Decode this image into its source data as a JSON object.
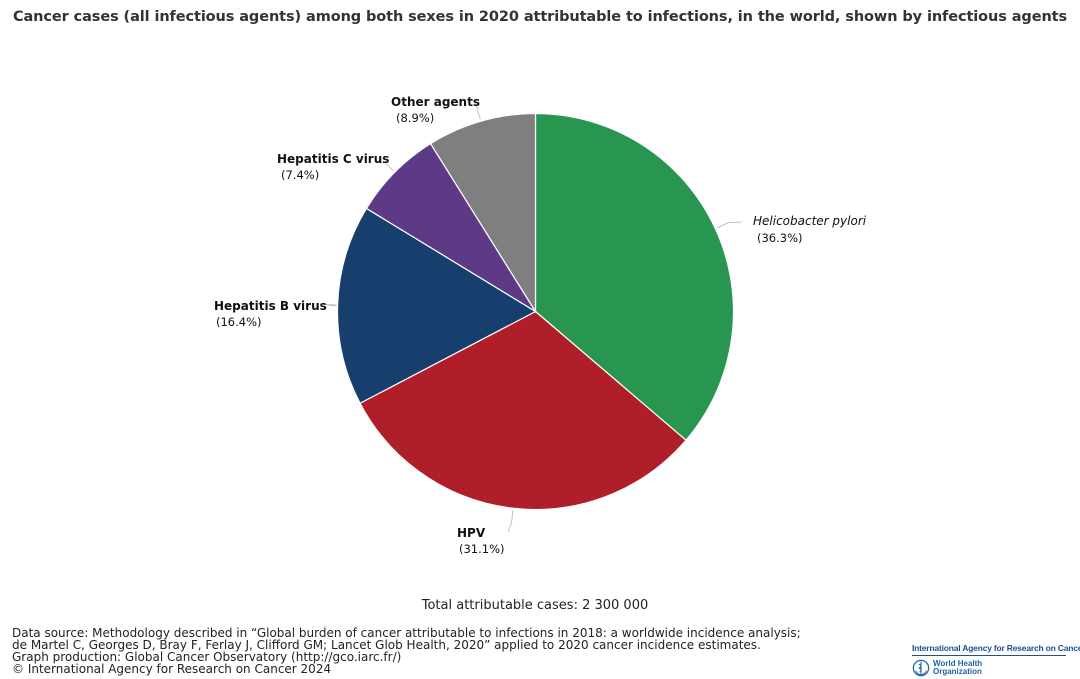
{
  "title": "Cancer cases (all infectious agents) among both sexes in 2020 attributable to infections, in the world, shown by infectious agents",
  "total_text": "Total attributable cases: 2 300 000",
  "footer_lines": [
    "Data source: Methodology described in “Global burden of cancer attributable to infections in 2018: a worldwide incidence analysis;",
    "de Martel C, Georges D, Bray F, Ferlay J, Clifford GM; Lancet Glob Health, 2020” applied to 2020 cancer incidence estimates.",
    "Graph production: Global Cancer Observatory (http://gco.iarc.fr/)",
    "© International Agency for Research on Cancer 2024"
  ],
  "logos": {
    "iarc": "International Agency for Research on Cancer",
    "who_line1": "World Health",
    "who_line2": "Organization"
  },
  "chart_data": {
    "type": "pie",
    "title": "Cancer cases (all infectious agents) among both sexes in 2020 attributable to infections, in the world, shown by infectious agents",
    "start": "12 o'clock",
    "direction": "clockwise",
    "slices": [
      {
        "label": "Helicobacter pylori",
        "value": 36.3,
        "pct_label": "(36.3%)",
        "color": "#289651",
        "italic": true
      },
      {
        "label": "HPV",
        "value": 31.1,
        "pct_label": "(31.1%)",
        "color": "#b01e2a",
        "italic": false
      },
      {
        "label": "Hepatitis B virus",
        "value": 16.4,
        "pct_label": "(16.4%)",
        "color": "#173f6e",
        "italic": false
      },
      {
        "label": "Hepatitis C virus",
        "value": 7.4,
        "pct_label": "(7.4%)",
        "color": "#5e3a86",
        "italic": false
      },
      {
        "label": "Other agents",
        "value": 8.9,
        "pct_label": "(8.9%)",
        "color": "#7f7f7f",
        "italic": false
      }
    ]
  }
}
